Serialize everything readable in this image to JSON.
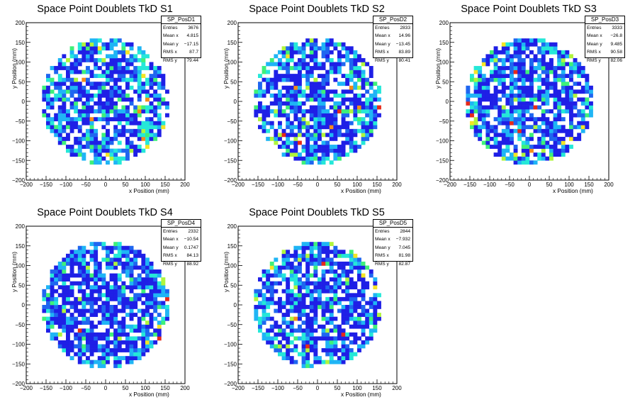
{
  "palette": [
    "#1f1fe6",
    "#1f66f0",
    "#1fb5f5",
    "#25e8d8",
    "#3ef07a",
    "#b0f53c",
    "#f5e524",
    "#f58c1a",
    "#e62a1a"
  ],
  "axes": {
    "xlabel": "x Position (mm)",
    "ylabel": "y Position (mm)",
    "ticks": [
      "−200",
      "−150",
      "−100",
      "−50",
      "0",
      "50",
      "100",
      "150",
      "200"
    ]
  },
  "panels": [
    {
      "title": "Space Point Doublets TkD S1",
      "stats": {
        "name": "SP_PosD1",
        "rows": [
          {
            "label": "Entries",
            "value": "3676"
          },
          {
            "label": "Mean x",
            "value": "4.815"
          },
          {
            "label": "Mean y",
            "value": "−17.15"
          },
          {
            "label": "RMS x",
            "value": "87.7"
          },
          {
            "label": "RMS y",
            "value": "79.44"
          }
        ]
      }
    },
    {
      "title": "Space Point Doublets TkD S2",
      "stats": {
        "name": "SP_PosD2",
        "rows": [
          {
            "label": "Entries",
            "value": "2833"
          },
          {
            "label": "Mean x",
            "value": "14.96"
          },
          {
            "label": "Mean y",
            "value": "−13.45"
          },
          {
            "label": "RMS x",
            "value": "83.89"
          },
          {
            "label": "RMS y",
            "value": "80.41"
          }
        ]
      }
    },
    {
      "title": "Space Point Doublets TkD S3",
      "stats": {
        "name": "SP_PosD3",
        "rows": [
          {
            "label": "Entries",
            "value": "3333"
          },
          {
            "label": "Mean x",
            "value": "−26.8"
          },
          {
            "label": "Mean y",
            "value": "9.485"
          },
          {
            "label": "RMS x",
            "value": "90.58"
          },
          {
            "label": "RMS y",
            "value": "82.06"
          }
        ]
      }
    },
    {
      "title": "Space Point Doublets TkD S4",
      "stats": {
        "name": "SP_PosD4",
        "rows": [
          {
            "label": "Entries",
            "value": "2332"
          },
          {
            "label": "Mean x",
            "value": "−10.54"
          },
          {
            "label": "Mean y",
            "value": "0.1747"
          },
          {
            "label": "RMS x",
            "value": "84.13"
          },
          {
            "label": "RMS y",
            "value": "88.92"
          }
        ]
      }
    },
    {
      "title": "Space Point Doublets TkD S5",
      "stats": {
        "name": "SP_PosD5",
        "rows": [
          {
            "label": "Entries",
            "value": "2844"
          },
          {
            "label": "Mean x",
            "value": "−7.932"
          },
          {
            "label": "Mean y",
            "value": "7.045"
          },
          {
            "label": "RMS x",
            "value": "81.98"
          },
          {
            "label": "RMS y",
            "value": "82.87"
          }
        ]
      }
    }
  ],
  "chart_data": [
    {
      "type": "heatmap",
      "title": "Space Point Doublets TkD S1",
      "xlabel": "x Position (mm)",
      "ylabel": "y Position (mm)",
      "xlim": [
        -200,
        200
      ],
      "ylim": [
        -200,
        200
      ],
      "bin_size": 10,
      "region": "circle",
      "radius": 160,
      "entries": 3676,
      "mean_x": 4.815,
      "mean_y": -17.15,
      "rms_x": 87.7,
      "rms_y": 79.44,
      "hotspot_x": 95,
      "grid": false
    },
    {
      "type": "heatmap",
      "title": "Space Point Doublets TkD S2",
      "xlabel": "x Position (mm)",
      "ylabel": "y Position (mm)",
      "xlim": [
        -200,
        200
      ],
      "ylim": [
        -200,
        200
      ],
      "bin_size": 10,
      "region": "circle",
      "radius": 160,
      "entries": 2833,
      "mean_x": 14.96,
      "mean_y": -13.45,
      "rms_x": 83.89,
      "rms_y": 80.41,
      "hotspot_x": 115,
      "grid": false
    },
    {
      "type": "heatmap",
      "title": "Space Point Doublets TkD S3",
      "xlabel": "x Position (mm)",
      "ylabel": "y Position (mm)",
      "xlim": [
        -200,
        200
      ],
      "ylim": [
        -200,
        200
      ],
      "bin_size": 10,
      "region": "circle",
      "radius": 160,
      "entries": 3333,
      "mean_x": -26.8,
      "mean_y": 9.485,
      "rms_x": 90.58,
      "rms_y": 82.06,
      "hotspot_x": -140,
      "grid": false
    },
    {
      "type": "heatmap",
      "title": "Space Point Doublets TkD S4",
      "xlabel": "x Position (mm)",
      "ylabel": "y Position (mm)",
      "xlim": [
        -200,
        200
      ],
      "ylim": [
        -200,
        200
      ],
      "bin_size": 10,
      "region": "circle",
      "radius": 160,
      "entries": 2332,
      "mean_x": -10.54,
      "mean_y": 0.1747,
      "rms_x": 84.13,
      "rms_y": 88.92,
      "hotspot_x": null,
      "grid": false
    },
    {
      "type": "heatmap",
      "title": "Space Point Doublets TkD S5",
      "xlabel": "x Position (mm)",
      "ylabel": "y Position (mm)",
      "xlim": [
        -200,
        200
      ],
      "ylim": [
        -200,
        200
      ],
      "bin_size": 10,
      "region": "circle",
      "radius": 160,
      "entries": 2844,
      "mean_x": -7.932,
      "mean_y": 7.045,
      "rms_x": 81.98,
      "rms_y": 82.87,
      "hotspot_x": -60,
      "grid": false
    }
  ]
}
